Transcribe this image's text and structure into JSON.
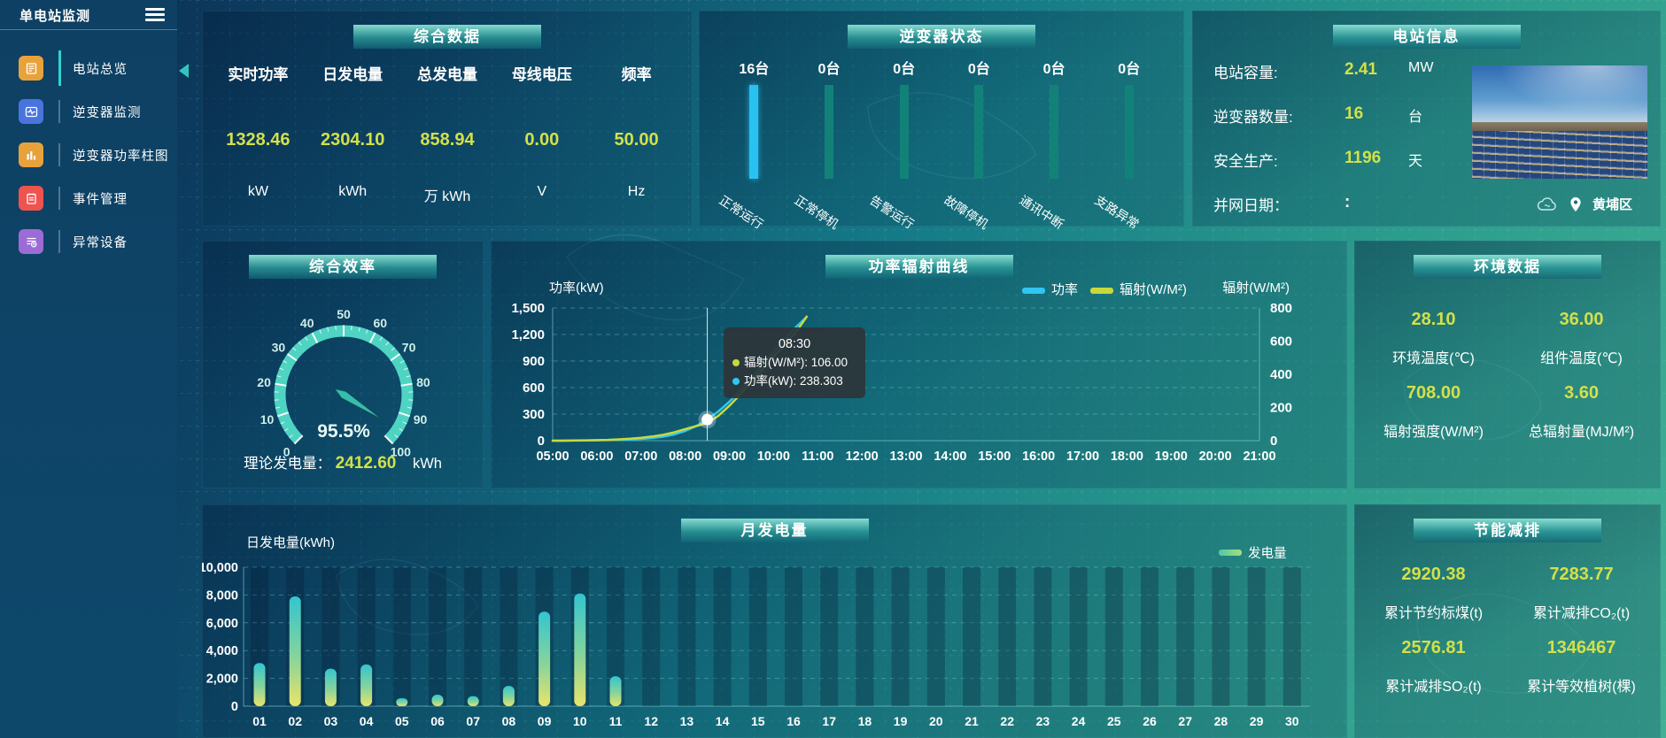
{
  "app": {
    "title": "单电站监测"
  },
  "colors": {
    "accent_value": "#d3e04a",
    "power_line": "#2fc7f2",
    "radiation_line": "#c8d93b",
    "bar_active": "#29c1f2",
    "bar_idle": "#128279",
    "gauge_band": "#4fd4c3"
  },
  "sidebar": {
    "title": "单电站监测",
    "items": [
      {
        "label": "电站总览",
        "icon": "news-icon",
        "icon_style": "background:#e8a23c",
        "active": true
      },
      {
        "label": "逆变器监测",
        "icon": "monitor-pulse-icon",
        "icon_style": "background:#4a74dd",
        "active": false
      },
      {
        "label": "逆变器功率柱图",
        "icon": "bar-chart-icon",
        "icon_style": "background:#e8a23c",
        "active": false
      },
      {
        "label": "事件管理",
        "icon": "notebook-icon",
        "icon_style": "background:#ef5350",
        "active": false
      },
      {
        "label": "异常设备",
        "icon": "device-list-clock-icon",
        "icon_style": "background:#9d6bd6",
        "active": false
      }
    ]
  },
  "overview": {
    "title": "综合数据",
    "metrics": [
      {
        "label": "实时功率",
        "value": "1328.46",
        "unit": "kW"
      },
      {
        "label": "日发电量",
        "value": "2304.10",
        "unit": "kWh"
      },
      {
        "label": "总发电量",
        "value": "858.94",
        "unit": "万 kWh"
      },
      {
        "label": "母线电压",
        "value": "0.00",
        "unit": "V"
      },
      {
        "label": "频率",
        "value": "50.00",
        "unit": "Hz"
      }
    ]
  },
  "inverter_status": {
    "title": "逆变器状态",
    "items": [
      {
        "count": "16台",
        "label": "正常运行"
      },
      {
        "count": "0台",
        "label": "正常停机"
      },
      {
        "count": "0台",
        "label": "告警运行"
      },
      {
        "count": "0台",
        "label": "故障停机"
      },
      {
        "count": "0台",
        "label": "通讯中断"
      },
      {
        "count": "0台",
        "label": "支路异常"
      }
    ]
  },
  "station_info": {
    "title": "电站信息",
    "rows": [
      {
        "label": "电站容量:",
        "value": "2.41",
        "unit": "MW"
      },
      {
        "label": "逆变器数量:",
        "value": "16",
        "unit": "台"
      },
      {
        "label": "安全生产:",
        "value": "1196",
        "unit": "天"
      },
      {
        "label": "并网日期：",
        "value": ":",
        "unit": ""
      }
    ],
    "location": "黄埔区"
  },
  "efficiency": {
    "title": "综合效率",
    "theory_label": "理论发电量：",
    "theory_value": "2412.60",
    "theory_unit": "kWh"
  },
  "curve": {
    "title": "功率辐射曲线",
    "legend": [
      {
        "label": "功率",
        "swatch_style": "background:#2fc7f2"
      },
      {
        "label": "辐射(W/M²)",
        "swatch_style": "background:#c8d93b"
      }
    ],
    "tooltip": {
      "time": "08:30",
      "rows": [
        {
          "text": "辐射(W/M²): 106.00",
          "dot_style": "background:#c8d93b"
        },
        {
          "text": "功率(kW): 238.303",
          "dot_style": "background:#2fc7f2"
        }
      ]
    }
  },
  "environment": {
    "title": "环境数据",
    "cells": [
      {
        "value": "28.10",
        "label": "环境温度(℃)"
      },
      {
        "value": "36.00",
        "label": "组件温度(℃)"
      },
      {
        "value": "708.00",
        "label": "辐射强度(W/M²)"
      },
      {
        "value": "3.60",
        "label": "总辐射量(MJ/M²)"
      }
    ]
  },
  "month": {
    "title": "月发电量",
    "legend": "发电量",
    "legend_swatch_style": "background:linear-gradient(90deg,#4fc9a6,#a8dd7d)"
  },
  "savings": {
    "title": "节能减排",
    "cells": [
      {
        "value": "2920.38",
        "label": "累计节约标煤(t)"
      },
      {
        "value": "7283.77",
        "label": "累计减排CO₂(t)"
      },
      {
        "value": "2576.81",
        "label": "累计减排SO₂(t)"
      },
      {
        "value": "1346467",
        "label": "累计等效植树(棵)"
      }
    ]
  },
  "chart_data": [
    {
      "type": "line",
      "title": "功率辐射曲线",
      "x_total_minutes": 960,
      "x_ticks": [
        "05:00",
        "06:00",
        "07:00",
        "08:00",
        "09:00",
        "10:00",
        "11:00",
        "12:00",
        "13:00",
        "14:00",
        "15:00",
        "16:00",
        "17:00",
        "18:00",
        "19:00",
        "20:00",
        "21:00"
      ],
      "step_minutes": 15,
      "yleft": {
        "title": "功率(kW)",
        "max": 1500,
        "ticks": [
          "0",
          "300",
          "600",
          "900",
          "1,200",
          "1,500"
        ]
      },
      "yright": {
        "title": "辐射(W/M²)",
        "max": 800,
        "ticks": [
          "0",
          "200",
          "400",
          "600",
          "800"
        ]
      },
      "series": [
        {
          "name": "功率",
          "axis": "left",
          "color": "#2fc7f2",
          "values": [
            0,
            0,
            1,
            2,
            4,
            6,
            9,
            14,
            20,
            30,
            45,
            70,
            110,
            165,
            238.3,
            330,
            440,
            570,
            710,
            855,
            1000,
            1140,
            1280,
            1400
          ]
        },
        {
          "name": "辐射(W/M²)",
          "axis": "right",
          "color": "#c8d93b",
          "values": [
            0,
            0,
            1,
            2,
            3,
            5,
            8,
            12,
            17,
            25,
            35,
            50,
            70,
            88,
            106,
            150,
            210,
            280,
            355,
            430,
            505,
            578,
            650,
            748
          ]
        }
      ],
      "crosshair": {
        "time": "08:30",
        "minutes": 210,
        "power": 238.303,
        "radiation": 106.0
      },
      "grid": true,
      "legend_position": "top"
    },
    {
      "type": "bar",
      "title": "月发电量",
      "categories": [
        "01",
        "02",
        "03",
        "04",
        "05",
        "06",
        "07",
        "08",
        "09",
        "10",
        "11",
        "12",
        "13",
        "14",
        "15",
        "16",
        "17",
        "18",
        "19",
        "20",
        "21",
        "22",
        "23",
        "24",
        "25",
        "26",
        "27",
        "28",
        "29",
        "30"
      ],
      "values": [
        3100,
        7900,
        2700,
        3000,
        570,
        830,
        720,
        1460,
        6800,
        8100,
        2150,
        0,
        0,
        0,
        0,
        0,
        0,
        0,
        0,
        0,
        0,
        0,
        0,
        0,
        0,
        0,
        0,
        0,
        0,
        0
      ],
      "ylabel": "日发电量(kWh)",
      "ylim": [
        0,
        10000
      ],
      "ytick_step": 2000,
      "legend": "发电量",
      "grid": true
    },
    {
      "type": "gauge",
      "title": "综合效率",
      "min": 0,
      "max": 100,
      "value": 95.5,
      "label": "95.5%",
      "tick_step": 10
    },
    {
      "type": "bar",
      "title": "逆变器状态",
      "categories": [
        "正常运行",
        "正常停机",
        "告警运行",
        "故障停机",
        "通讯中断",
        "支路异常"
      ],
      "values": [
        16,
        0,
        0,
        0,
        0,
        0
      ],
      "note": "bars rendered equal height, counts shown above"
    }
  ]
}
